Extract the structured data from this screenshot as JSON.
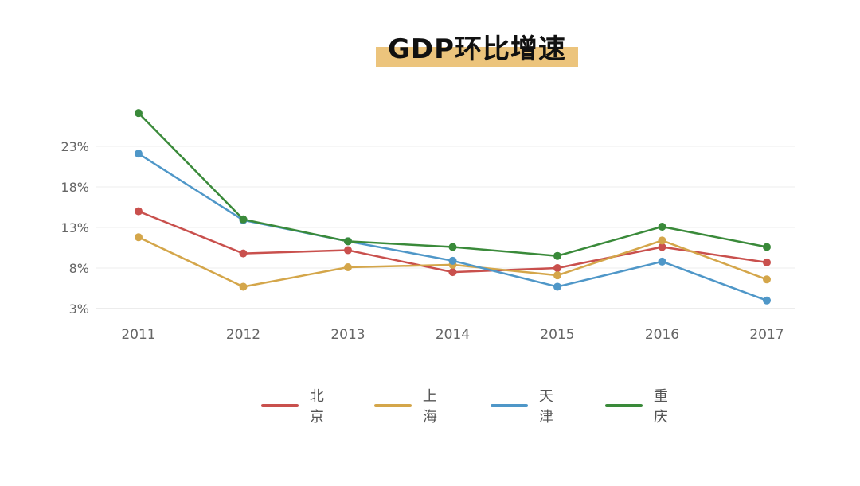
{
  "title": "GDP环比增速",
  "chart_data": {
    "type": "line",
    "title": "GDP环比增速",
    "categories": [
      "2011",
      "2012",
      "2013",
      "2014",
      "2015",
      "2016",
      "2017"
    ],
    "yticks": [
      "3%",
      "8%",
      "13%",
      "18%",
      "23%"
    ],
    "ylim": [
      3,
      23
    ],
    "grid": true,
    "legend_position": "bottom",
    "series": [
      {
        "name": "北京",
        "color": "#c9504d",
        "values": [
          15.0,
          9.8,
          10.2,
          7.5,
          8.0,
          10.6,
          8.7
        ]
      },
      {
        "name": "上海",
        "color": "#d4a64a",
        "values": [
          11.8,
          5.7,
          8.1,
          8.4,
          7.1,
          11.4,
          6.6
        ]
      },
      {
        "name": "天津",
        "color": "#4f97c8",
        "values": [
          22.1,
          13.9,
          11.3,
          8.9,
          5.7,
          8.8,
          4.0
        ]
      },
      {
        "name": "重庆",
        "color": "#3a8a3a",
        "values": [
          27.1,
          14.0,
          11.3,
          10.6,
          9.5,
          13.1,
          10.6
        ]
      }
    ]
  }
}
